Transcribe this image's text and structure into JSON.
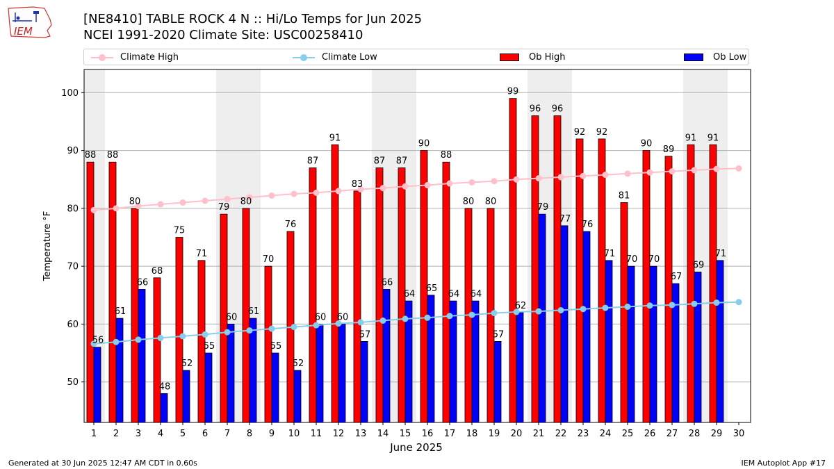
{
  "header": {
    "title_line1": "[NE8410] TABLE ROCK 4 N :: Hi/Lo Temps for Jun 2025",
    "title_line2": "NCEI 1991-2020 Climate Site: USC00258410",
    "logo_text": "IEM"
  },
  "legend": {
    "climate_high": "Climate High",
    "climate_low": "Climate Low",
    "ob_high": "Ob High",
    "ob_low": "Ob Low"
  },
  "colors": {
    "ob_high": "#ff0000",
    "ob_low": "#0000ff",
    "climate_high": "#ffc0cb",
    "climate_low": "#87ceeb",
    "weekend_shade": "#eeeeee",
    "grid": "#b0b0b0"
  },
  "footer": {
    "generated": "Generated at 30 Jun 2025 12:47 AM CDT in 0.60s",
    "app": "IEM Autoplot App #17"
  },
  "chart_data": {
    "type": "bar",
    "xlabel": "June 2025",
    "ylabel": "Temperature °F",
    "ylim": [
      43,
      104
    ],
    "yticks": [
      50,
      60,
      70,
      80,
      90,
      100
    ],
    "grid": "horizontal",
    "legend_position": "top",
    "categories": [
      "1",
      "2",
      "3",
      "4",
      "5",
      "6",
      "7",
      "8",
      "9",
      "10",
      "11",
      "12",
      "13",
      "14",
      "15",
      "16",
      "17",
      "18",
      "19",
      "20",
      "21",
      "22",
      "23",
      "24",
      "25",
      "26",
      "27",
      "28",
      "29",
      "30"
    ],
    "series": [
      {
        "name": "Ob High",
        "kind": "bar",
        "values": [
          88,
          88,
          80,
          68,
          75,
          71,
          79,
          80,
          70,
          76,
          87,
          91,
          83,
          87,
          87,
          90,
          88,
          80,
          80,
          99,
          96,
          96,
          92,
          92,
          81,
          90,
          89,
          91,
          91,
          null
        ]
      },
      {
        "name": "Ob Low",
        "kind": "bar",
        "values": [
          56,
          61,
          66,
          48,
          52,
          55,
          60,
          61,
          55,
          52,
          60,
          60,
          57,
          66,
          64,
          65,
          64,
          64,
          57,
          62,
          79,
          77,
          76,
          71,
          70,
          70,
          67,
          69,
          71,
          null
        ]
      },
      {
        "name": "Climate High",
        "kind": "line",
        "values": [
          79.7,
          80.0,
          80.4,
          80.7,
          81.0,
          81.3,
          81.6,
          81.9,
          82.2,
          82.5,
          82.7,
          83.0,
          83.3,
          83.5,
          83.8,
          84.0,
          84.3,
          84.5,
          84.7,
          85.0,
          85.2,
          85.4,
          85.6,
          85.8,
          86.0,
          86.2,
          86.4,
          86.6,
          86.8,
          86.9
        ]
      },
      {
        "name": "Climate Low",
        "kind": "line",
        "values": [
          56.6,
          56.9,
          57.3,
          57.6,
          57.9,
          58.2,
          58.6,
          58.9,
          59.2,
          59.5,
          59.8,
          60.1,
          60.3,
          60.6,
          60.9,
          61.1,
          61.4,
          61.6,
          61.9,
          62.1,
          62.2,
          62.4,
          62.6,
          62.8,
          63.0,
          63.2,
          63.3,
          63.5,
          63.7,
          63.8
        ]
      }
    ],
    "weekend_days": [
      1,
      7,
      8,
      14,
      15,
      21,
      22,
      28,
      29
    ]
  }
}
